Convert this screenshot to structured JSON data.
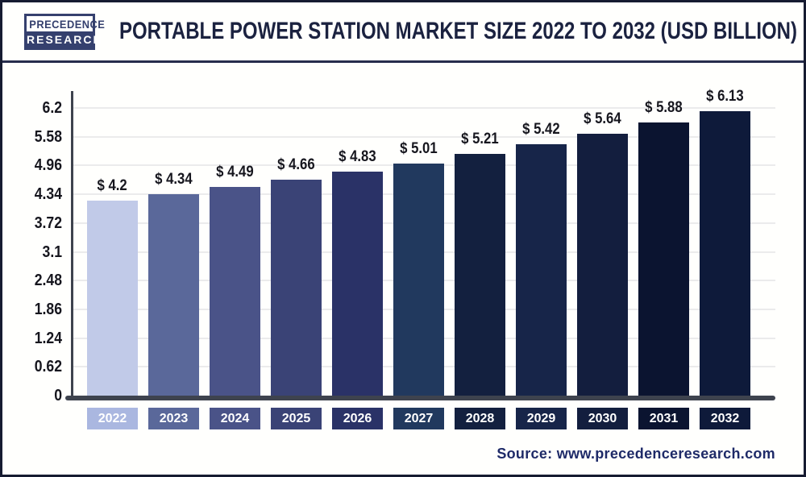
{
  "header": {
    "logo": {
      "line1": "PRECEDENCE",
      "line2": "RESEARCH"
    },
    "title": "PORTABLE POWER STATION MARKET SIZE 2022 TO 2032 (USD BILLION)"
  },
  "chart_data": {
    "type": "bar",
    "title": "Portable Power Station Market Size 2022 to 2032 (USD Billion)",
    "categories": [
      "2022",
      "2023",
      "2024",
      "2025",
      "2026",
      "2027",
      "2028",
      "2029",
      "2030",
      "2031",
      "2032"
    ],
    "values": [
      4.2,
      4.34,
      4.49,
      4.66,
      4.83,
      5.01,
      5.21,
      5.42,
      5.64,
      5.88,
      6.13
    ],
    "value_labels": [
      "$ 4.2",
      "$ 4.34",
      "$ 4.49",
      "$ 4.66",
      "$ 4.83",
      "$ 5.01",
      "$ 5.21",
      "$ 5.42",
      "$ 5.64",
      "$ 5.88",
      "$ 6.13"
    ],
    "bar_colors": [
      "#c1cae8",
      "#5a689a",
      "#4a5388",
      "#3a4376",
      "#2a3267",
      "#21395e",
      "#13203f",
      "#172549",
      "#131e3e",
      "#0b1430",
      "#0e1a3a"
    ],
    "badge_colors": [
      "#aab7e0",
      "#5a689a",
      "#4a5388",
      "#3a4376",
      "#2a3267",
      "#21395e",
      "#13203f",
      "#172549",
      "#131e3e",
      "#0b1430",
      "#0e1a3a"
    ],
    "xlabel": "",
    "ylabel": "",
    "ylim": [
      0,
      6.2
    ],
    "yticks": [
      0,
      0.62,
      1.24,
      1.86,
      2.48,
      3.1,
      3.72,
      4.34,
      4.96,
      5.58,
      6.2
    ],
    "ytick_labels": [
      "0",
      "0.62",
      "1.24",
      "1.86",
      "2.48",
      "3.1",
      "3.72",
      "4.34",
      "4.96",
      "5.58",
      "6.2"
    ],
    "grid": "horizontal",
    "legend": "none"
  },
  "footer": {
    "source": "Source: www.precedenceresearch.com"
  },
  "theme": {
    "axis_color": "#3e434e",
    "grid_color": "#ebebec",
    "label_color": "#16161e",
    "title_color": "#1b2240",
    "source_color": "#1e2a68"
  }
}
